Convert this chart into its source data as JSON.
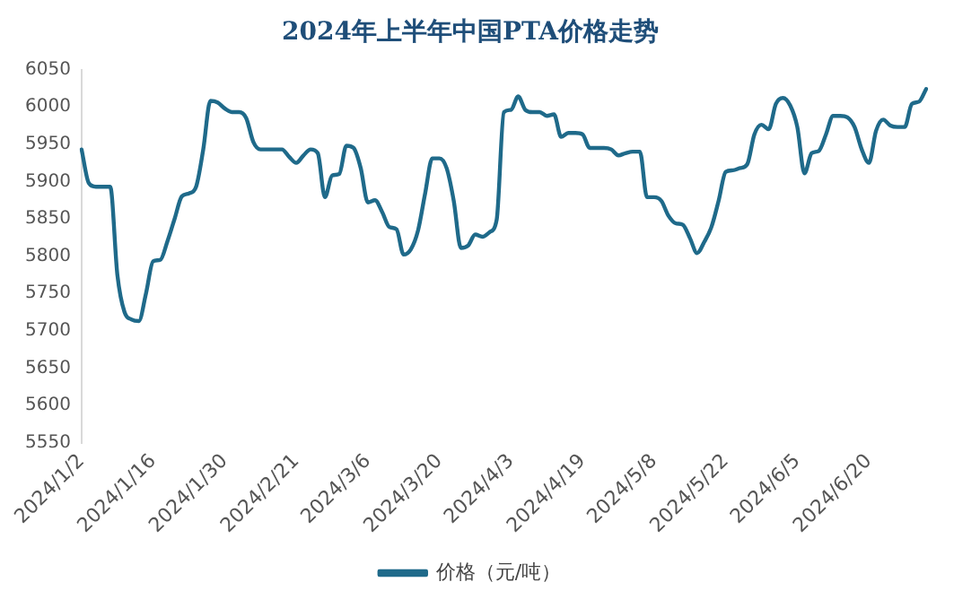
{
  "chart_data": {
    "type": "line",
    "title": "2024年上半年中国PTA价格走势",
    "categories": [
      "2024/1/2",
      null,
      null,
      null,
      null,
      null,
      null,
      null,
      null,
      null,
      "2024/1/16",
      null,
      null,
      null,
      null,
      null,
      null,
      null,
      null,
      null,
      "2024/1/30",
      null,
      null,
      null,
      null,
      null,
      null,
      null,
      null,
      null,
      "2024/2/21",
      null,
      null,
      null,
      null,
      null,
      null,
      null,
      null,
      null,
      "2024/3/6",
      null,
      null,
      null,
      null,
      null,
      null,
      null,
      null,
      null,
      "2024/3/20",
      null,
      null,
      null,
      null,
      null,
      null,
      null,
      null,
      null,
      "2024/4/3",
      null,
      null,
      null,
      null,
      null,
      null,
      null,
      null,
      null,
      "2024/4/19",
      null,
      null,
      null,
      null,
      null,
      null,
      null,
      null,
      null,
      "2024/5/8",
      null,
      null,
      null,
      null,
      null,
      null,
      null,
      null,
      null,
      "2024/5/22",
      null,
      null,
      null,
      null,
      null,
      null,
      null,
      null,
      null,
      "2024/6/5",
      null,
      null,
      null,
      null,
      null,
      null,
      null,
      null,
      null,
      "2024/6/20",
      null,
      null,
      null,
      null,
      null,
      null,
      null,
      null
    ],
    "series": [
      {
        "name": "价格（元/吨）",
        "color": "#1f6a8a",
        "values": [
          5943,
          5898,
          5893,
          5893,
          5893,
          5775,
          5725,
          5715,
          5713,
          5750,
          5793,
          5795,
          5820,
          5850,
          5880,
          5884,
          5893,
          5943,
          6008,
          6006,
          5998,
          5993,
          5993,
          5985,
          5953,
          5943,
          5943,
          5943,
          5943,
          5933,
          5925,
          5935,
          5943,
          5938,
          5879,
          5908,
          5910,
          5948,
          5945,
          5918,
          5872,
          5875,
          5859,
          5839,
          5836,
          5802,
          5809,
          5834,
          5884,
          5931,
          5931,
          5918,
          5874,
          5811,
          5814,
          5829,
          5826,
          5832,
          5849,
          5993,
          5996,
          6014,
          5996,
          5993,
          5993,
          5988,
          5990,
          5960,
          5965,
          5965,
          5963,
          5945,
          5945,
          5945,
          5943,
          5935,
          5938,
          5940,
          5940,
          5879,
          5879,
          5874,
          5854,
          5844,
          5842,
          5824,
          5804,
          5819,
          5839,
          5874,
          5913,
          5915,
          5918,
          5923,
          5963,
          5976,
          5970,
          6004,
          6012,
          6002,
          5973,
          5911,
          5938,
          5941,
          5963,
          5988,
          5988,
          5986,
          5973,
          5943,
          5925,
          5968,
          5983,
          5975,
          5973,
          5973,
          6004,
          6007,
          6024
        ]
      }
    ],
    "ylim": [
      5550,
      6050
    ],
    "yticks": [
      5550,
      5600,
      5650,
      5700,
      5750,
      5800,
      5850,
      5900,
      5950,
      6000,
      6050
    ],
    "grid": false,
    "legend": "bottom",
    "marker": "none",
    "line_style": "solid"
  }
}
